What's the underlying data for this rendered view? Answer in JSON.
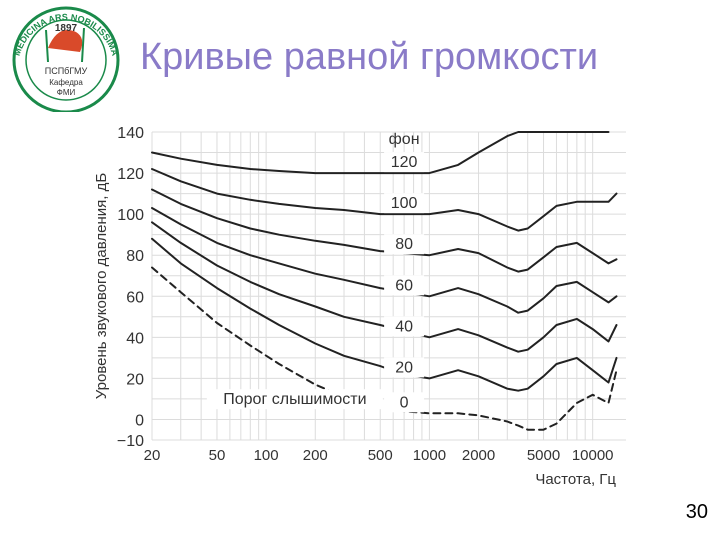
{
  "slide": {
    "title": "Кривые равной громкости",
    "page_number": "30",
    "logo": {
      "text_top": "MEDICINA ARS NOBILISSIMA",
      "year": "1897",
      "org": "ПСПбГМУ",
      "dept_1": "Кафедра",
      "dept_2": "ФМИ",
      "accent_color": "#1a8a4a"
    }
  },
  "chart_data": {
    "type": "line",
    "xlabel": "Частота, Гц",
    "ylabel": "Уровень звукового давления, дБ",
    "x_scale": "log",
    "xlim": [
      20,
      16000
    ],
    "ylim": [
      -10,
      140
    ],
    "grid": true,
    "x_ticks": [
      20,
      50,
      100,
      200,
      500,
      1000,
      2000,
      5000,
      10000
    ],
    "x_tick_labels": [
      "20",
      "50",
      "100",
      "200",
      "500",
      "1000",
      "2000",
      "5000",
      "10000"
    ],
    "y_ticks": [
      -10,
      0,
      20,
      40,
      60,
      80,
      100,
      120,
      140
    ],
    "y_tick_labels": [
      "−10",
      "0",
      "20",
      "40",
      "60",
      "80",
      "100",
      "120",
      "140"
    ],
    "phon_header": "фон",
    "threshold_label": "Порог слышимости",
    "series": [
      {
        "name": "0",
        "dashed": true,
        "x": [
          20,
          30,
          50,
          80,
          120,
          200,
          300,
          500,
          700,
          1000,
          1500,
          2000,
          3000,
          3500,
          4000,
          5000,
          6000,
          8000,
          10000,
          12500,
          14000
        ],
        "y": [
          74,
          62,
          47,
          36,
          27,
          17,
          11,
          6,
          4,
          3,
          3,
          2,
          -1,
          -3,
          -5,
          -5,
          -2,
          8,
          12,
          8,
          24
        ]
      },
      {
        "name": "20",
        "x": [
          20,
          30,
          50,
          80,
          120,
          200,
          300,
          500,
          700,
          1000,
          1500,
          2000,
          3000,
          3500,
          4000,
          5000,
          6000,
          8000,
          10000,
          12500,
          14000
        ],
        "y": [
          88,
          76,
          64,
          54,
          46,
          37,
          31,
          26,
          22,
          20,
          24,
          21,
          15,
          14,
          15,
          21,
          27,
          30,
          24,
          18,
          30
        ]
      },
      {
        "name": "40",
        "x": [
          20,
          30,
          50,
          80,
          120,
          200,
          300,
          500,
          700,
          1000,
          1500,
          2000,
          3000,
          3500,
          4000,
          5000,
          6000,
          8000,
          10000,
          12500,
          14000
        ],
        "y": [
          96,
          86,
          75,
          67,
          61,
          55,
          50,
          46,
          43,
          40,
          44,
          41,
          35,
          33,
          34,
          40,
          46,
          49,
          44,
          38,
          46
        ]
      },
      {
        "name": "60",
        "x": [
          20,
          30,
          50,
          80,
          120,
          200,
          300,
          500,
          700,
          1000,
          1500,
          2000,
          3000,
          3500,
          4000,
          5000,
          6000,
          8000,
          10000,
          12500,
          14000
        ],
        "y": [
          103,
          95,
          86,
          80,
          76,
          71,
          68,
          64,
          62,
          60,
          64,
          61,
          55,
          52,
          53,
          59,
          65,
          67,
          62,
          57,
          60
        ]
      },
      {
        "name": "80",
        "x": [
          20,
          30,
          50,
          80,
          120,
          200,
          300,
          500,
          700,
          1000,
          1500,
          2000,
          3000,
          3500,
          4000,
          5000,
          6000,
          8000,
          10000,
          12500,
          14000
        ],
        "y": [
          112,
          105,
          98,
          93,
          90,
          87,
          85,
          82,
          81,
          80,
          83,
          81,
          74,
          72,
          73,
          79,
          84,
          86,
          81,
          76,
          78
        ]
      },
      {
        "name": "100",
        "x": [
          20,
          30,
          50,
          80,
          120,
          200,
          300,
          500,
          700,
          1000,
          1500,
          2000,
          3000,
          3500,
          4000,
          5000,
          6000,
          8000,
          10000,
          12500,
          14000
        ],
        "y": [
          122,
          116,
          110,
          107,
          105,
          103,
          102,
          100,
          100,
          100,
          102,
          100,
          94,
          92,
          93,
          99,
          104,
          106,
          106,
          106,
          110
        ]
      },
      {
        "name": "120",
        "x": [
          20,
          30,
          50,
          80,
          120,
          200,
          300,
          500,
          700,
          1000,
          1500,
          2000,
          3000,
          3500,
          4000,
          5000,
          6000,
          8000,
          10000,
          12500
        ],
        "y": [
          130,
          127,
          124,
          122,
          121,
          120,
          120,
          120,
          120,
          120,
          124,
          130,
          138,
          140,
          140,
          140,
          140,
          140,
          140,
          140
        ]
      }
    ]
  }
}
